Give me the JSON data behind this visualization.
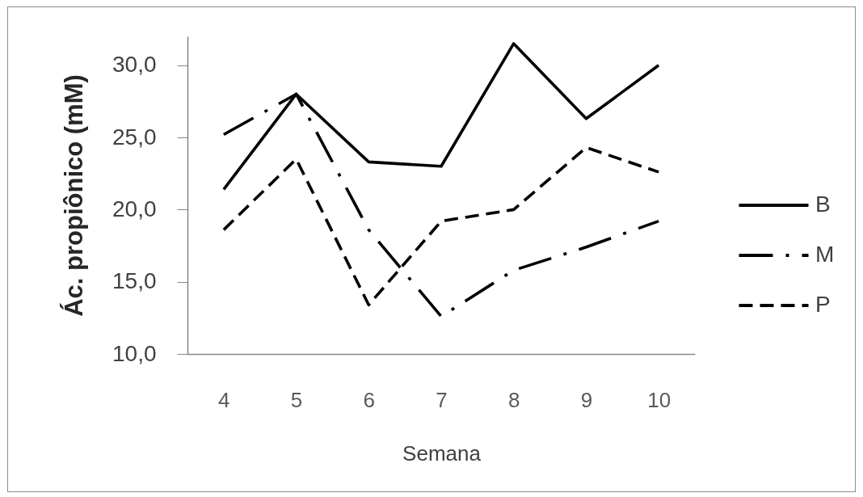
{
  "chart_data": {
    "type": "line",
    "xlabel": "Semana",
    "ylabel": "Ác. propiônico (mM)",
    "categories": [
      "4",
      "5",
      "6",
      "7",
      "8",
      "9",
      "10"
    ],
    "series": [
      {
        "name": "B",
        "color": "#000000",
        "line_style": "solid",
        "values": [
          21.4,
          28.0,
          23.3,
          23.0,
          31.5,
          26.3,
          30.0
        ]
      },
      {
        "name": "M",
        "color": "#000000",
        "line_style": "dashdot",
        "values": [
          25.2,
          28.0,
          18.6,
          12.6,
          15.8,
          17.4,
          19.2
        ]
      },
      {
        "name": "P",
        "color": "#000000",
        "line_style": "dashed",
        "values": [
          18.6,
          23.5,
          13.4,
          19.2,
          20.0,
          24.3,
          22.6
        ]
      }
    ],
    "ylim": [
      10,
      32
    ],
    "yticks": [
      {
        "value": 10,
        "label": "10,0"
      },
      {
        "value": 15,
        "label": "15,0"
      },
      {
        "value": 20,
        "label": "20,0"
      },
      {
        "value": 25,
        "label": "25,0"
      },
      {
        "value": 30,
        "label": "30,0"
      }
    ],
    "legend": "right"
  }
}
